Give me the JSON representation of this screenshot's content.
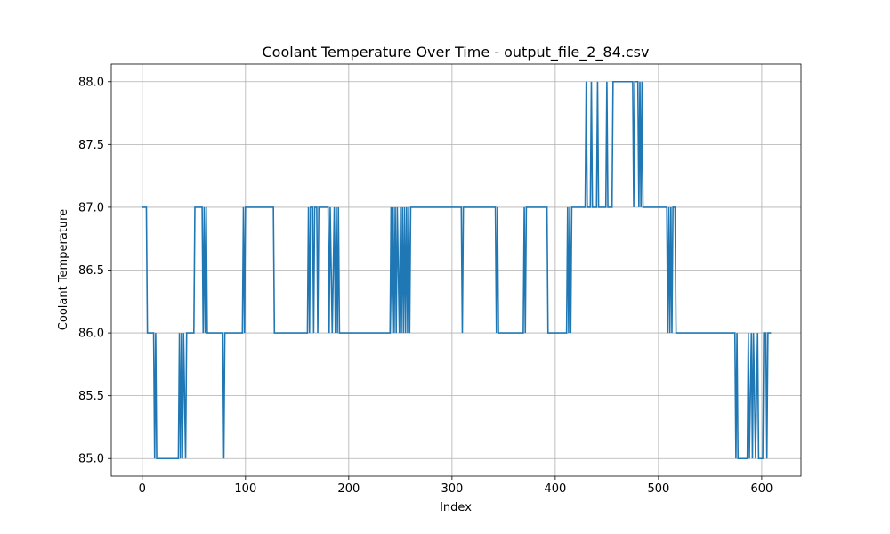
{
  "chart_data": {
    "type": "line",
    "title": "Coolant Temperature Over Time - output_file_2_84.csv",
    "xlabel": "Index",
    "ylabel": "Coolant Temperature",
    "xlim": [
      -30,
      638
    ],
    "ylim": [
      84.86,
      88.14
    ],
    "xticks": [
      0,
      100,
      200,
      300,
      400,
      500,
      600
    ],
    "xtick_labels": [
      "0",
      "100",
      "200",
      "300",
      "400",
      "500",
      "600"
    ],
    "yticks": [
      85.0,
      85.5,
      86.0,
      86.5,
      87.0,
      87.5,
      88.0
    ],
    "ytick_labels": [
      "85.0",
      "85.5",
      "86.0",
      "86.5",
      "87.0",
      "87.5",
      "88.0"
    ],
    "grid": true,
    "color": "#1f77b4",
    "series": [
      {
        "name": "",
        "segments": [
          [
            0,
            87
          ],
          [
            4,
            87
          ],
          [
            5,
            86
          ],
          [
            11,
            86
          ],
          [
            12,
            85
          ],
          [
            13,
            86
          ],
          [
            14,
            85
          ],
          [
            35,
            85
          ],
          [
            36,
            86
          ],
          [
            37,
            85
          ],
          [
            38,
            86
          ],
          [
            39,
            85
          ],
          [
            40,
            86
          ],
          [
            42,
            85
          ],
          [
            43,
            86
          ],
          [
            50,
            86
          ],
          [
            51,
            87
          ],
          [
            58,
            87
          ],
          [
            59,
            86
          ],
          [
            60,
            87
          ],
          [
            61,
            86
          ],
          [
            62,
            87
          ],
          [
            63,
            86
          ],
          [
            78,
            86
          ],
          [
            79,
            85
          ],
          [
            80,
            86
          ],
          [
            97,
            86
          ],
          [
            98,
            87
          ],
          [
            99,
            86
          ],
          [
            100,
            87
          ],
          [
            127,
            87
          ],
          [
            128,
            86
          ],
          [
            160,
            86
          ],
          [
            161,
            87
          ],
          [
            162,
            86
          ],
          [
            163,
            87
          ],
          [
            165,
            87
          ],
          [
            166,
            86
          ],
          [
            167,
            87
          ],
          [
            169,
            87
          ],
          [
            170,
            86
          ],
          [
            171,
            87
          ],
          [
            180,
            87
          ],
          [
            181,
            86
          ],
          [
            182,
            87
          ],
          [
            184,
            86
          ],
          [
            186,
            87
          ],
          [
            187,
            86
          ],
          [
            188,
            87
          ],
          [
            189,
            86
          ],
          [
            190,
            87
          ],
          [
            191,
            86
          ],
          [
            240,
            86
          ],
          [
            241,
            87
          ],
          [
            242,
            86
          ],
          [
            243,
            87
          ],
          [
            244,
            86
          ],
          [
            245,
            87
          ],
          [
            246,
            86
          ],
          [
            247,
            87
          ],
          [
            249,
            86
          ],
          [
            250,
            87
          ],
          [
            251,
            86
          ],
          [
            252,
            87
          ],
          [
            253,
            86
          ],
          [
            254,
            87
          ],
          [
            255,
            86
          ],
          [
            256,
            87
          ],
          [
            257,
            86
          ],
          [
            258,
            87
          ],
          [
            259,
            86
          ],
          [
            260,
            87
          ],
          [
            309,
            87
          ],
          [
            310,
            86
          ],
          [
            311,
            87
          ],
          [
            342,
            87
          ],
          [
            343,
            86
          ],
          [
            344,
            87
          ],
          [
            345,
            86
          ],
          [
            369,
            86
          ],
          [
            370,
            87
          ],
          [
            371,
            86
          ],
          [
            372,
            87
          ],
          [
            392,
            87
          ],
          [
            393,
            86
          ],
          [
            411,
            86
          ],
          [
            412,
            87
          ],
          [
            413,
            86
          ],
          [
            414,
            87
          ],
          [
            415,
            86
          ],
          [
            416,
            87
          ],
          [
            429,
            87
          ],
          [
            430,
            88
          ],
          [
            431,
            87
          ],
          [
            434,
            87
          ],
          [
            435,
            88
          ],
          [
            436,
            87
          ],
          [
            440,
            87
          ],
          [
            441,
            88
          ],
          [
            442,
            87
          ],
          [
            449,
            87
          ],
          [
            450,
            88
          ],
          [
            451,
            87
          ],
          [
            455,
            87
          ],
          [
            456,
            88
          ],
          [
            475,
            88
          ],
          [
            476,
            87
          ],
          [
            477,
            88
          ],
          [
            480,
            88
          ],
          [
            481,
            87
          ],
          [
            482,
            88
          ],
          [
            483,
            87
          ],
          [
            484,
            88
          ],
          [
            485,
            87
          ],
          [
            508,
            87
          ],
          [
            509,
            86
          ],
          [
            510,
            87
          ],
          [
            511,
            86
          ],
          [
            512,
            87
          ],
          [
            513,
            86
          ],
          [
            514,
            87
          ],
          [
            516,
            87
          ],
          [
            517,
            86
          ],
          [
            574,
            86
          ],
          [
            575,
            85
          ],
          [
            576,
            86
          ],
          [
            577,
            85
          ],
          [
            586,
            85
          ],
          [
            587,
            86
          ],
          [
            588,
            85
          ],
          [
            590,
            86
          ],
          [
            591,
            85
          ],
          [
            592,
            86
          ],
          [
            594,
            85
          ],
          [
            596,
            86
          ],
          [
            597,
            85
          ],
          [
            601,
            85
          ],
          [
            602,
            86
          ],
          [
            604,
            86
          ],
          [
            605,
            85
          ],
          [
            606,
            86
          ],
          [
            609,
            86
          ]
        ]
      }
    ]
  }
}
